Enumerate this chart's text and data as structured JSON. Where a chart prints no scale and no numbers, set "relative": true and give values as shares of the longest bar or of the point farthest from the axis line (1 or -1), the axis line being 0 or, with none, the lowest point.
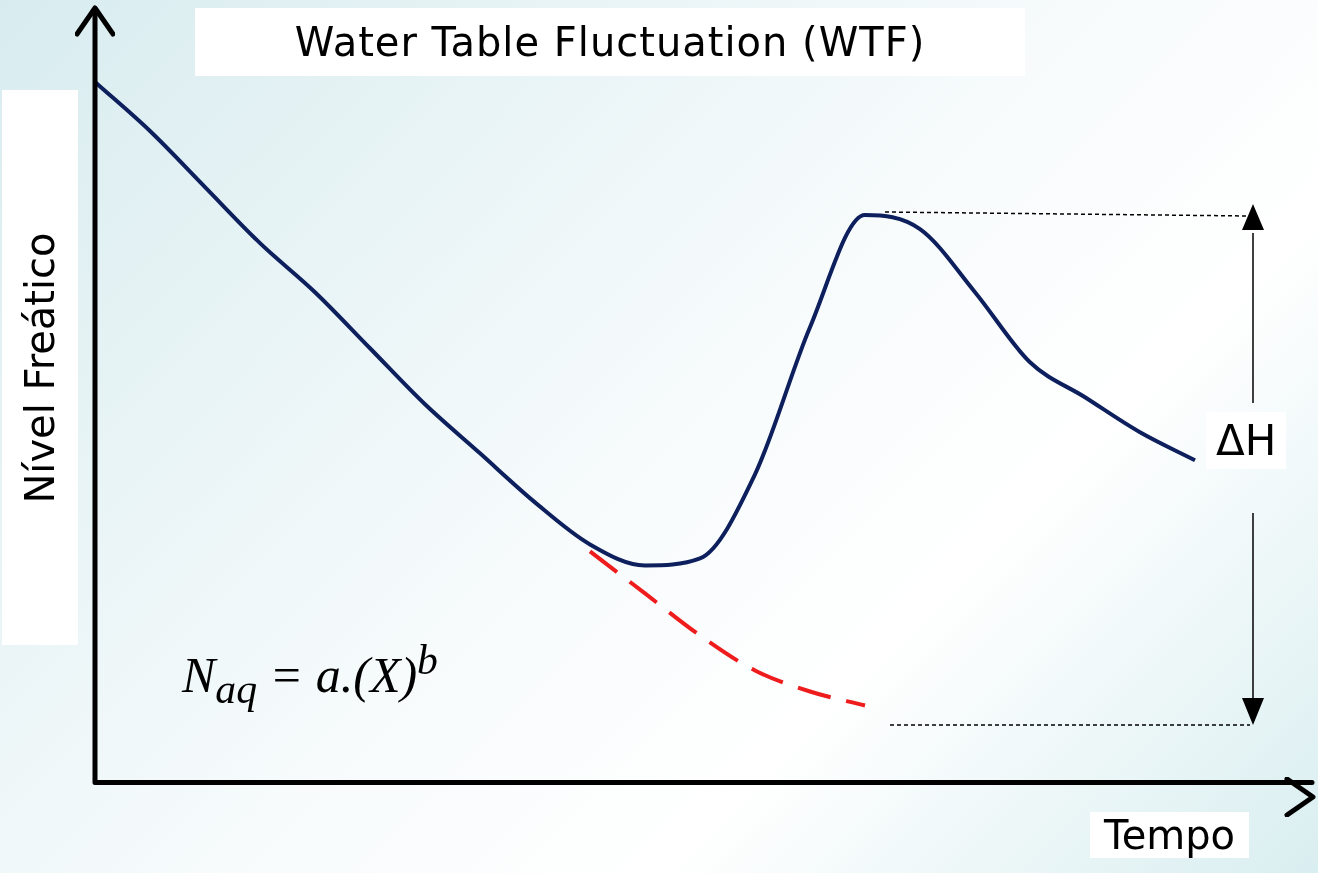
{
  "chart_data": {
    "type": "line",
    "title": "Water Table Fluctuation (WTF)",
    "xlabel": "Tempo",
    "ylabel": "Nível Freático",
    "relative": true,
    "legend": false,
    "grid": false,
    "marker": "none",
    "categories": [
      null,
      null,
      null,
      null,
      null,
      null,
      null,
      null,
      null,
      null,
      null,
      null,
      null,
      null,
      null,
      null,
      null,
      null,
      null,
      null,
      null,
      null,
      null
    ],
    "series": [
      {
        "color": "#0d1f5c",
        "line_style": "solid",
        "values": [
          1.0,
          0.93,
          0.85,
          0.77,
          0.7,
          0.62,
          0.54,
          0.47,
          0.4,
          0.34,
          0.31,
          0.32,
          0.44,
          0.65,
          0.81,
          0.79,
          0.7,
          0.6,
          0.55,
          0.5,
          0.46,
          null,
          null
        ]
      },
      {
        "color": "#ee1c1c",
        "line_style": "dashed",
        "values": [
          null,
          null,
          null,
          null,
          null,
          null,
          null,
          null,
          null,
          0.33,
          0.27,
          0.21,
          0.16,
          0.13,
          0.11,
          null,
          null,
          null,
          null,
          null,
          null,
          null,
          null
        ]
      }
    ],
    "annotations": [
      "ΔH",
      "N$_{aq}$ = a.(X)$^{b}$"
    ]
  }
}
